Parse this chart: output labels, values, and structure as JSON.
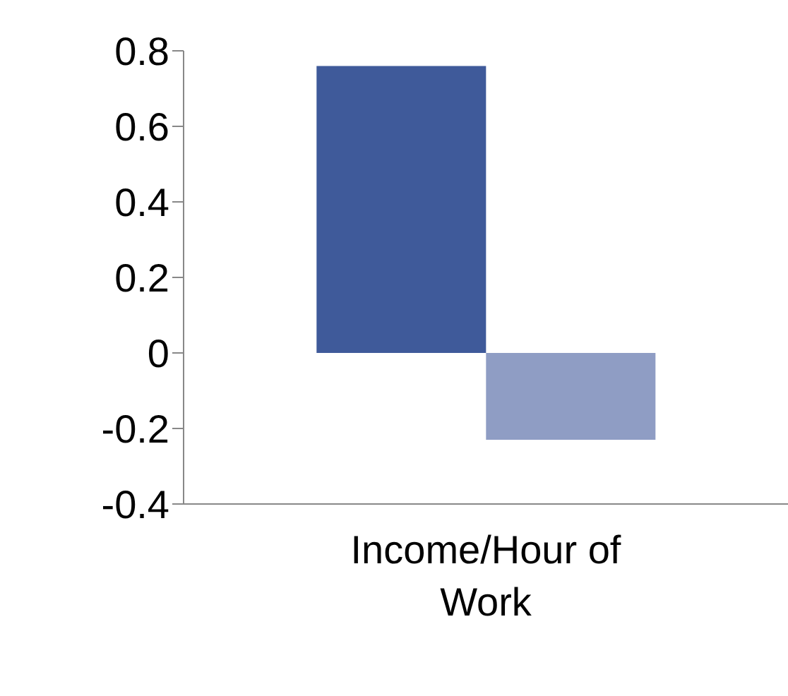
{
  "chart_data": {
    "type": "bar",
    "categories": [
      "Income/Hour of Work"
    ],
    "series": [
      {
        "color": "#3f5a9a",
        "values": [
          0.76
        ]
      },
      {
        "color": "#8f9dc4",
        "values": [
          -0.23
        ]
      }
    ],
    "ylim": [
      -0.4,
      0.8
    ],
    "yticks": [
      -0.4,
      -0.2,
      0,
      0.2,
      0.4,
      0.6,
      0.8
    ],
    "grid": false,
    "legend": false
  }
}
